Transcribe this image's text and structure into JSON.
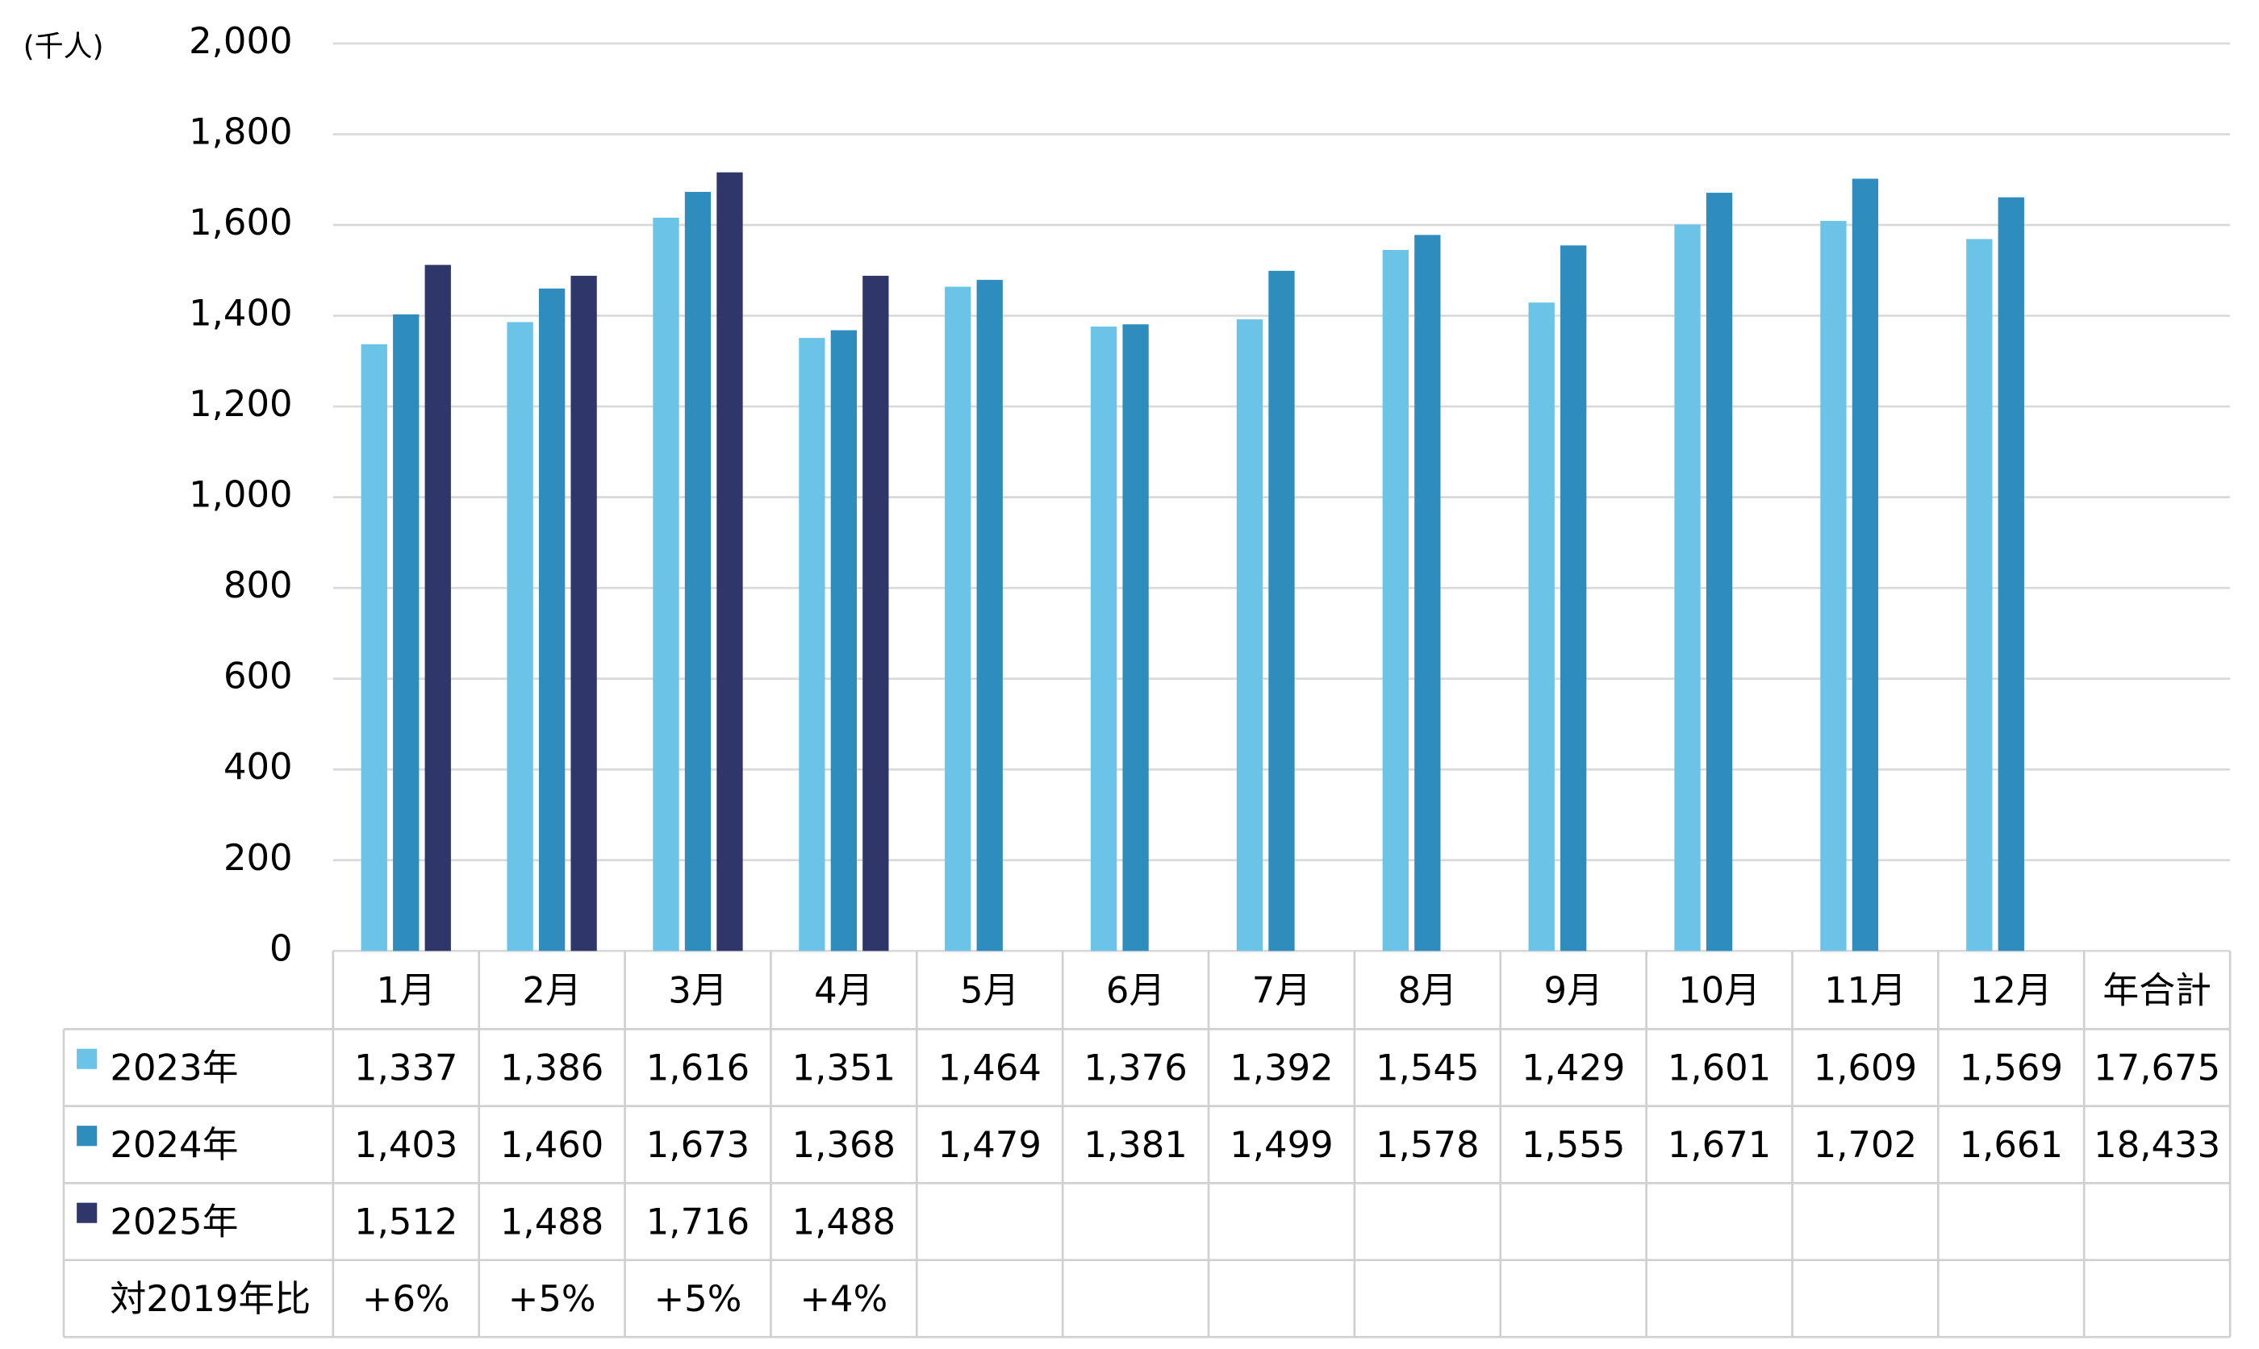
{
  "chart_data": {
    "type": "bar",
    "y_unit_label": "(千人)",
    "categories": [
      "1月",
      "2月",
      "3月",
      "4月",
      "5月",
      "6月",
      "7月",
      "8月",
      "9月",
      "10月",
      "11月",
      "12月"
    ],
    "total_label": "年合計",
    "series": [
      {
        "name": "2023年",
        "color": "#6cc3e8",
        "values": [
          1337,
          1386,
          1616,
          1351,
          1464,
          1376,
          1392,
          1545,
          1429,
          1601,
          1609,
          1569
        ],
        "value_labels": [
          "1,337",
          "1,386",
          "1,616",
          "1,351",
          "1,464",
          "1,376",
          "1,392",
          "1,545",
          "1,429",
          "1,601",
          "1,609",
          "1,569"
        ],
        "total": {
          "value": 17675,
          "label": "17,675"
        }
      },
      {
        "name": "2024年",
        "color": "#2e8dbd",
        "values": [
          1403,
          1460,
          1673,
          1368,
          1479,
          1381,
          1499,
          1578,
          1555,
          1671,
          1702,
          1661
        ],
        "value_labels": [
          "1,403",
          "1,460",
          "1,673",
          "1,368",
          "1,479",
          "1,381",
          "1,499",
          "1,578",
          "1,555",
          "1,671",
          "1,702",
          "1,661"
        ],
        "total": {
          "value": 18433,
          "label": "18,433"
        }
      },
      {
        "name": "2025年",
        "color": "#2f3669",
        "values": [
          1512,
          1488,
          1716,
          1488,
          null,
          null,
          null,
          null,
          null,
          null,
          null,
          null
        ],
        "value_labels": [
          "1,512",
          "1,488",
          "1,716",
          "1,488",
          null,
          null,
          null,
          null,
          null,
          null,
          null,
          null
        ]
      }
    ],
    "ratio_row": {
      "label": "対2019年比",
      "values": [
        6,
        5,
        5,
        4,
        null,
        null,
        null,
        null,
        null,
        null,
        null,
        null
      ],
      "value_labels": [
        "+6%",
        "+5%",
        "+5%",
        "+4%",
        null,
        null,
        null,
        null,
        null,
        null,
        null,
        null
      ]
    },
    "ylim": [
      0,
      2000
    ],
    "yticks": [
      0,
      {
        "value": 200,
        "label": "200"
      },
      {
        "value": 400,
        "label": "400"
      },
      {
        "value": 600,
        "label": "600"
      },
      {
        "value": 800,
        "label": "800"
      },
      {
        "value": 1000,
        "label": "1,000"
      },
      {
        "value": 1200,
        "label": "1,200"
      },
      {
        "value": 1400,
        "label": "1,400"
      },
      {
        "value": 1600,
        "label": "1,600"
      },
      {
        "value": 1800,
        "label": "1,800"
      },
      {
        "value": 2000,
        "label": "2,000"
      }
    ],
    "grid": true
  }
}
